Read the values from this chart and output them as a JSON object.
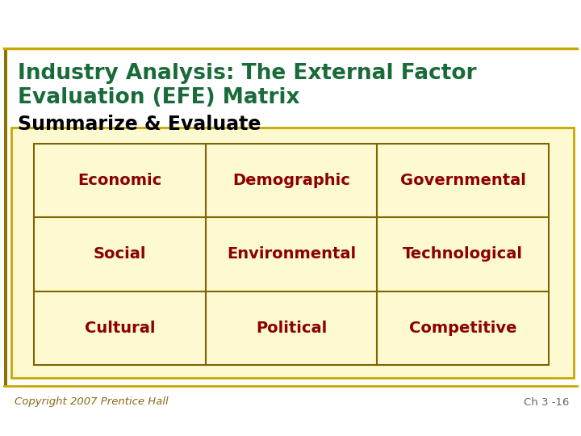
{
  "title_line1": "Industry Analysis: The External Factor",
  "title_line2": "Evaluation (EFE) Matrix",
  "subtitle": "Summarize & Evaluate",
  "title_color": "#1a6b3a",
  "subtitle_color": "#000000",
  "table_cells": [
    [
      "Economic",
      "Demographic",
      "Governmental"
    ],
    [
      "Social",
      "Environmental",
      "Technological"
    ],
    [
      "Cultural",
      "Political",
      "Competitive"
    ]
  ],
  "cell_text_color": "#8b0000",
  "cell_bg_color": "#fdf9d0",
  "outer_box_color": "#fdf9d0",
  "outer_border_color": "#c8a800",
  "inner_border_color": "#7a6500",
  "bg_color": "#ffffff",
  "footer_left": "Copyright 2007 Prentice Hall",
  "footer_right": "Ch 3 -16",
  "footer_color": "#8b6914",
  "footer_right_color": "#666666",
  "left_bar_color": "#8b7300",
  "title_fontsize": 19,
  "subtitle_fontsize": 17,
  "cell_fontsize": 14,
  "footer_fontsize": 9.5
}
